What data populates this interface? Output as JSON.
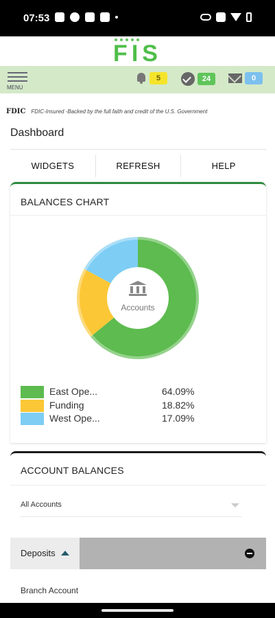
{
  "status_bar": {
    "time": "07:53"
  },
  "brand": {
    "logo_text": "FIS"
  },
  "toolbar": {
    "menu_label": "MENU",
    "alerts_count": "5",
    "tasks_count": "24",
    "messages_count": "0"
  },
  "fdic": {
    "mark": "FDIC",
    "text": "FDIC-Insured -Backed by the full faith and credit of the U.S. Government"
  },
  "page": {
    "title": "Dashboard"
  },
  "actions": [
    "WIDGETS",
    "REFRESH",
    "HELP"
  ],
  "balances_chart": {
    "title": "BALANCES CHART",
    "center_label": "Accounts"
  },
  "chart_data": {
    "type": "pie",
    "donut": true,
    "categories": [
      "East Ope...",
      "Funding",
      "West Ope..."
    ],
    "values": [
      64.09,
      18.82,
      17.09
    ],
    "labels": [
      "64.09%",
      "18.82%",
      "17.09%"
    ],
    "colors": [
      "#5dbb4f",
      "#fbc736",
      "#7dcdf4"
    ],
    "title": "BALANCES CHART"
  },
  "account_balances": {
    "title": "ACCOUNT BALANCES",
    "filter_value": "All Accounts",
    "group_label": "Deposits",
    "first_account": "Branch Account"
  }
}
